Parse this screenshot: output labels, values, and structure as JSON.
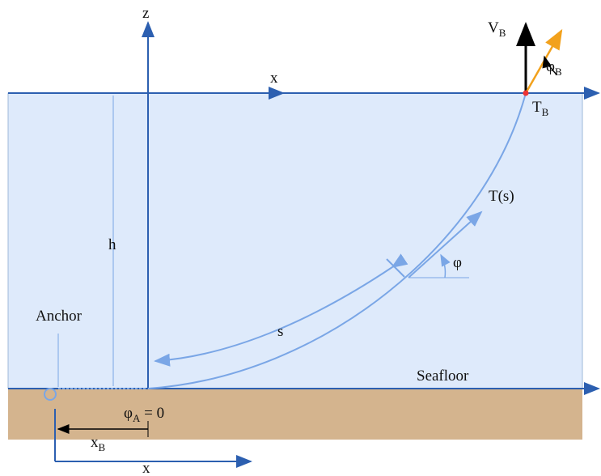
{
  "labels": {
    "z": "z",
    "x_surface": "x",
    "v_b": {
      "main": "V",
      "sub": "B"
    },
    "phi_b": {
      "main": "φ",
      "sub": "B"
    },
    "t_b": {
      "main": "T",
      "sub": "B"
    },
    "t_s": "T(s)",
    "phi": "φ",
    "h": "h",
    "s": "s",
    "anchor": "Anchor",
    "seafloor": "Seafloor",
    "phi_a": {
      "main": "φ",
      "sub": "A",
      "rest": " = 0"
    },
    "x_b": {
      "main": "x",
      "sub": "B"
    },
    "x_bottom": "x"
  }
}
